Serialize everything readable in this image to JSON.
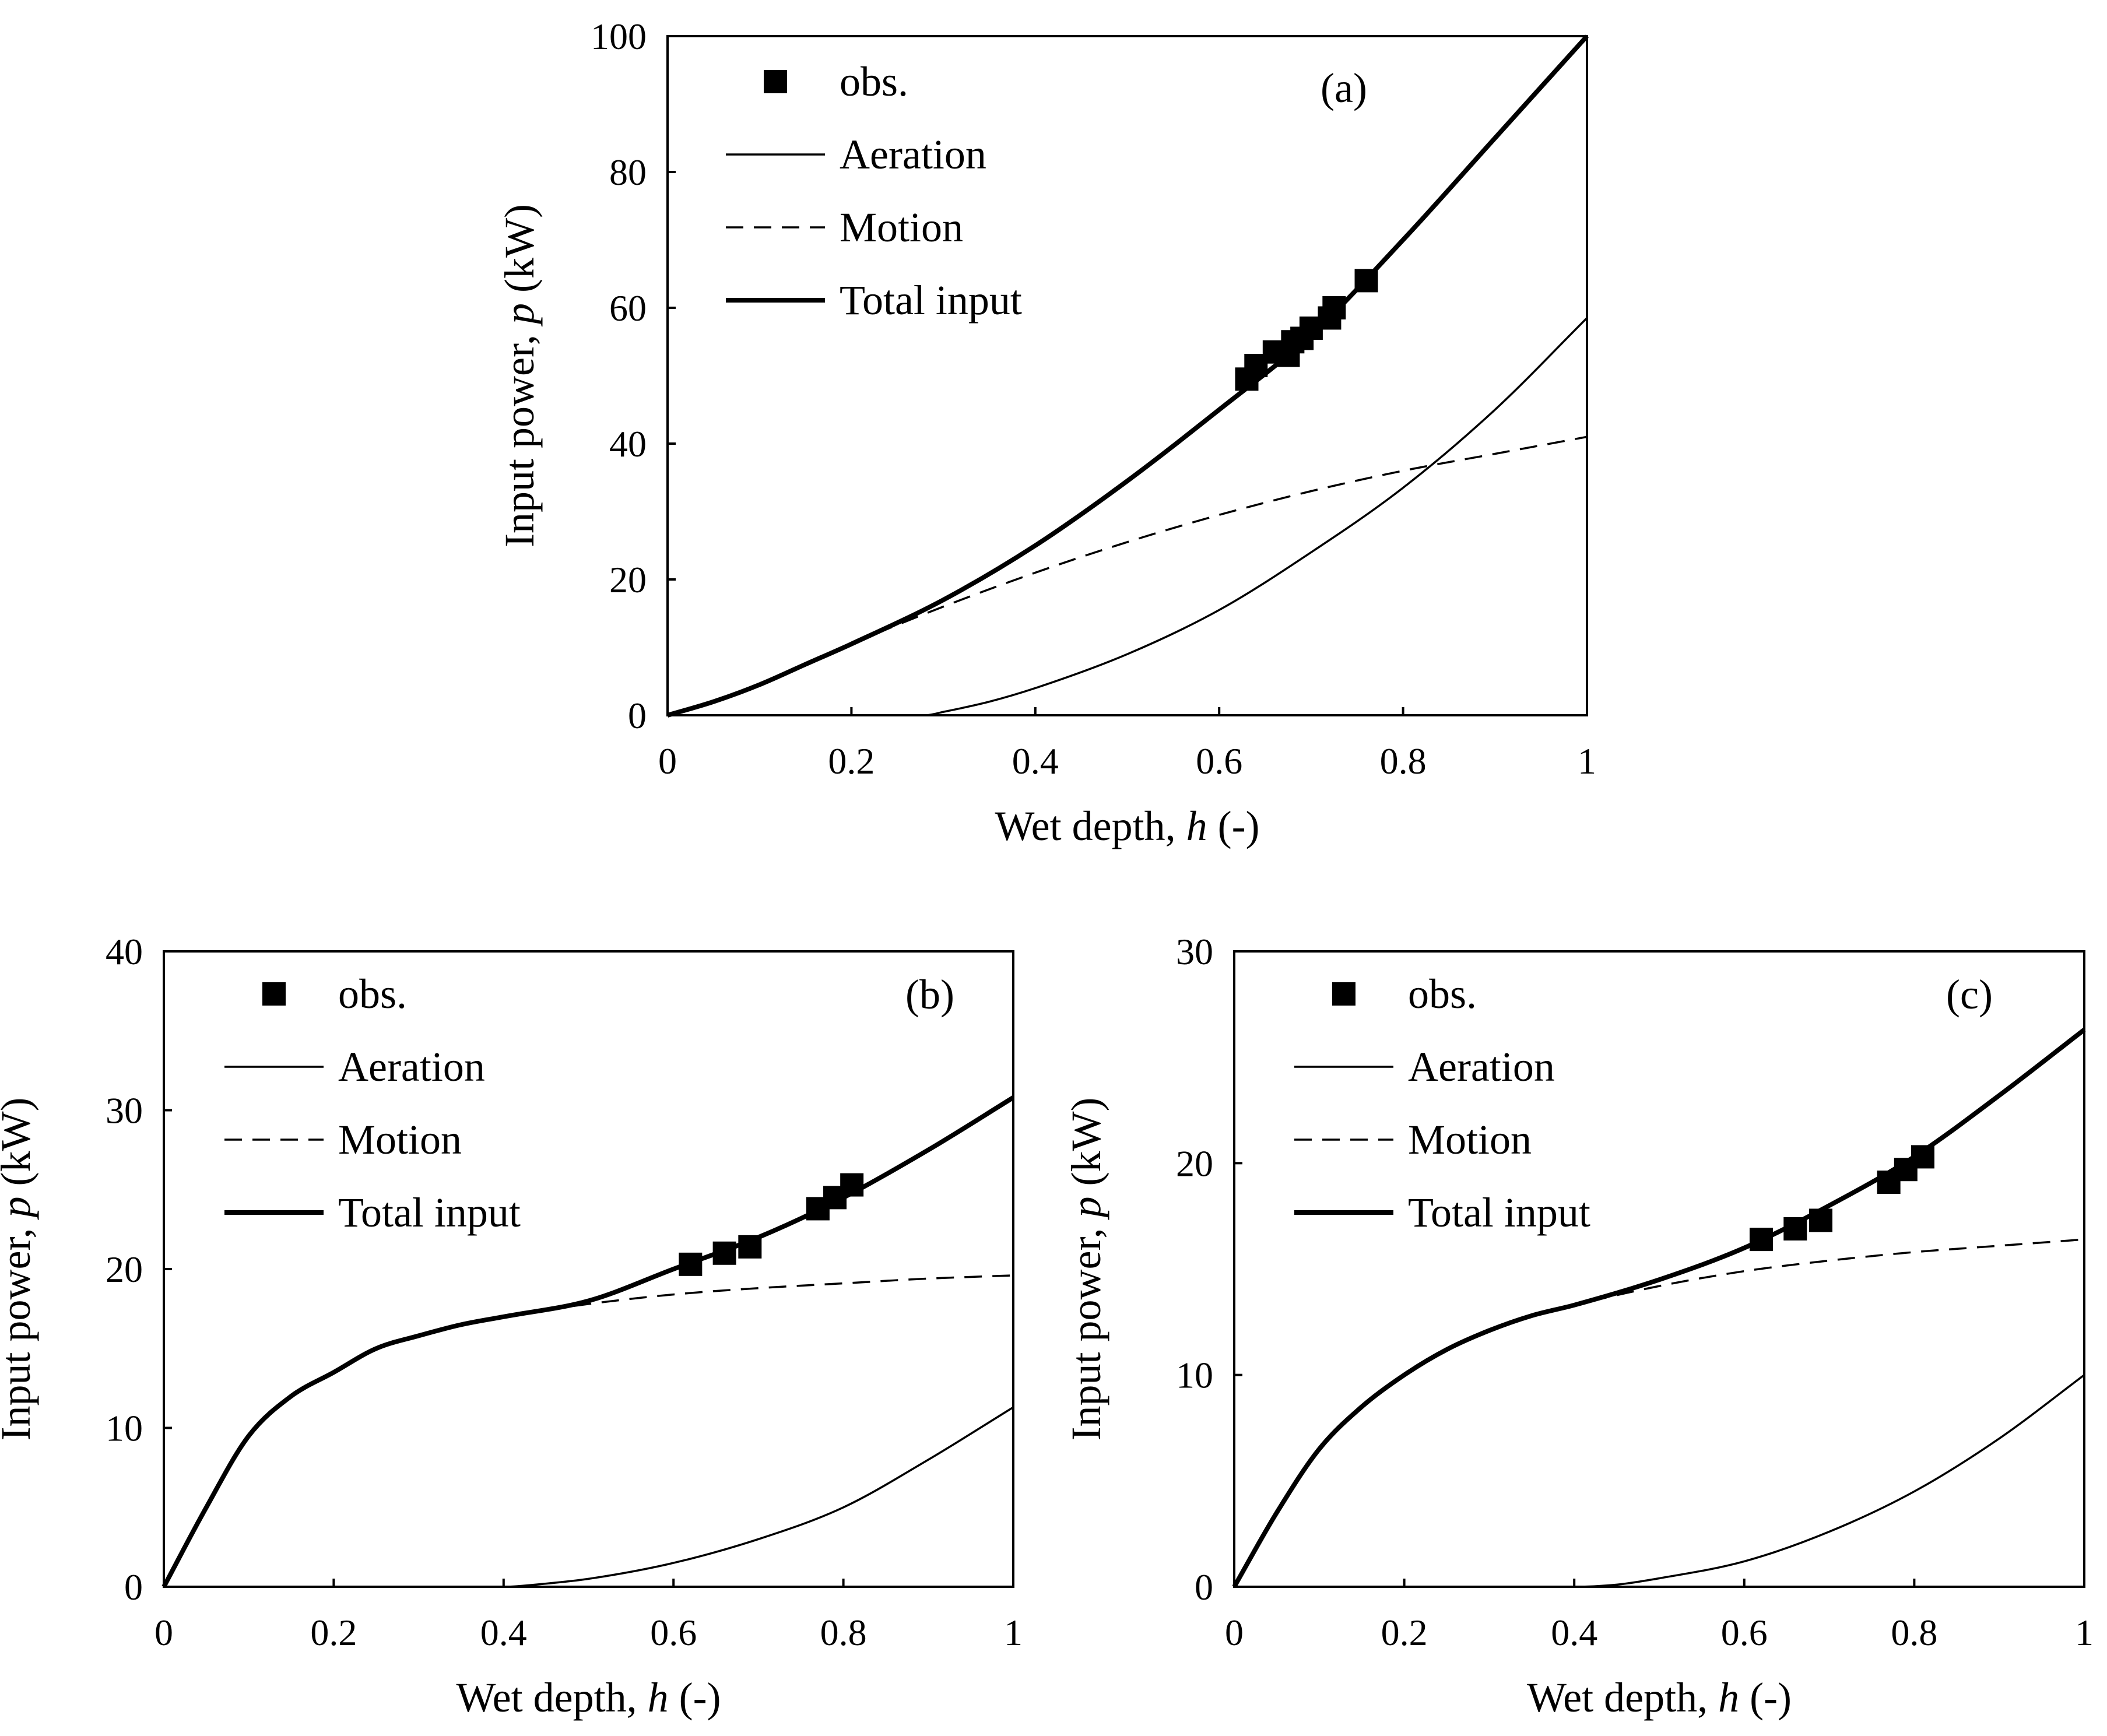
{
  "chart_data": [
    {
      "type": "line",
      "panel": "(a)",
      "xlabel_prefix": "Wet depth, ",
      "xlabel_var": "h",
      "xlabel_suffix": " (-)",
      "ylabel_prefix": "Input power, ",
      "ylabel_var": "p",
      "ylabel_suffix": "  (kW)",
      "xlim": [
        0,
        1
      ],
      "ylim": [
        0,
        100
      ],
      "xticks": [
        0,
        0.2,
        0.4,
        0.6,
        0.8,
        1
      ],
      "xtick_labels": [
        "0",
        "0.2",
        "0.4",
        "0.6",
        "0.8",
        "1"
      ],
      "yticks": [
        0,
        20,
        40,
        60,
        80,
        100
      ],
      "ytick_labels": [
        "0",
        "20",
        "40",
        "60",
        "80",
        "100"
      ],
      "legend": [
        "obs.",
        "Aeration",
        "Motion",
        "Total input"
      ],
      "legend_position": "top-left",
      "series": [
        {
          "name": "Aeration",
          "style": "thin-solid",
          "x": [
            0,
            0.1,
            0.2,
            0.25,
            0.28,
            0.3,
            0.35,
            0.4,
            0.5,
            0.6,
            0.7,
            0.8,
            0.9,
            1.0
          ],
          "y": [
            0,
            0,
            0,
            0,
            0,
            0.5,
            2,
            4,
            9,
            15.5,
            24,
            33.5,
            45,
            58.5
          ]
        },
        {
          "name": "Motion",
          "style": "dashed",
          "x": [
            0,
            0.05,
            0.1,
            0.15,
            0.2,
            0.3,
            0.4,
            0.5,
            0.6,
            0.7,
            0.8,
            0.9,
            1.0
          ],
          "y": [
            0,
            2,
            4.5,
            7.5,
            10.5,
            16,
            21,
            25.5,
            29.5,
            33,
            36,
            38.5,
            41
          ]
        },
        {
          "name": "Total input",
          "style": "thick-solid",
          "x": [
            0,
            0.05,
            0.1,
            0.15,
            0.2,
            0.3,
            0.4,
            0.5,
            0.6,
            0.7,
            0.8,
            0.9,
            1.0
          ],
          "y": [
            0,
            2,
            4.5,
            7.5,
            10.5,
            17,
            25,
            34.5,
            45,
            56,
            70,
            85,
            100
          ]
        },
        {
          "name": "obs.",
          "style": "square-markers",
          "x": [
            0.63,
            0.64,
            0.66,
            0.675,
            0.68,
            0.69,
            0.7,
            0.72,
            0.725,
            0.76
          ],
          "y": [
            49.5,
            51.5,
            53.5,
            53,
            55,
            55.5,
            57,
            58.5,
            60,
            64
          ]
        }
      ]
    },
    {
      "type": "line",
      "panel": "(b)",
      "xlabel_prefix": "Wet depth, ",
      "xlabel_var": "h",
      "xlabel_suffix": " (-)",
      "ylabel_prefix": "Input power, ",
      "ylabel_var": "p",
      "ylabel_suffix": "  (kW)",
      "xlim": [
        0,
        1
      ],
      "ylim": [
        0,
        40
      ],
      "xticks": [
        0,
        0.2,
        0.4,
        0.6,
        0.8,
        1
      ],
      "xtick_labels": [
        "0",
        "0.2",
        "0.4",
        "0.6",
        "0.8",
        "1"
      ],
      "yticks": [
        0,
        10,
        20,
        30,
        40
      ],
      "ytick_labels": [
        "0",
        "10",
        "20",
        "30",
        "40"
      ],
      "legend": [
        "obs.",
        "Aeration",
        "Motion",
        "Total input"
      ],
      "legend_position": "top-left",
      "series": [
        {
          "name": "Aeration",
          "style": "thin-solid",
          "x": [
            0,
            0.2,
            0.3,
            0.4,
            0.45,
            0.5,
            0.6,
            0.7,
            0.8,
            0.9,
            1.0
          ],
          "y": [
            0,
            0,
            0,
            0,
            0.2,
            0.5,
            1.5,
            3,
            5,
            8,
            11.3
          ]
        },
        {
          "name": "Motion",
          "style": "dashed",
          "x": [
            0,
            0.05,
            0.1,
            0.15,
            0.2,
            0.25,
            0.3,
            0.35,
            0.4,
            0.5,
            0.6,
            0.7,
            0.8,
            0.9,
            1.0
          ],
          "y": [
            0,
            5,
            9.5,
            12,
            13.5,
            15,
            15.8,
            16.5,
            17,
            17.8,
            18.4,
            18.8,
            19.1,
            19.4,
            19.6
          ]
        },
        {
          "name": "Total input",
          "style": "thick-solid",
          "x": [
            0,
            0.05,
            0.1,
            0.15,
            0.2,
            0.25,
            0.3,
            0.35,
            0.4,
            0.5,
            0.6,
            0.7,
            0.8,
            0.9,
            1.0
          ],
          "y": [
            0,
            5,
            9.5,
            12,
            13.5,
            15,
            15.8,
            16.5,
            17,
            18,
            20,
            22,
            24.5,
            27.5,
            30.8
          ]
        },
        {
          "name": "obs.",
          "style": "square-markers",
          "x": [
            0.62,
            0.66,
            0.69,
            0.77,
            0.79,
            0.81
          ],
          "y": [
            20.3,
            21,
            21.4,
            23.8,
            24.5,
            25.3
          ]
        }
      ]
    },
    {
      "type": "line",
      "panel": "(c)",
      "xlabel_prefix": "Wet depth, ",
      "xlabel_var": "h",
      "xlabel_suffix": " (-)",
      "ylabel_prefix": "Input power, ",
      "ylabel_var": "p",
      "ylabel_suffix": "  (kW)",
      "xlim": [
        0,
        1
      ],
      "ylim": [
        0,
        30
      ],
      "xticks": [
        0,
        0.2,
        0.4,
        0.6,
        0.8,
        1
      ],
      "xtick_labels": [
        "0",
        "0.2",
        "0.4",
        "0.6",
        "0.8",
        "1"
      ],
      "yticks": [
        0,
        10,
        20,
        30
      ],
      "ytick_labels": [
        "0",
        "10",
        "20",
        "30"
      ],
      "legend": [
        "obs.",
        "Aeration",
        "Motion",
        "Total input"
      ],
      "legend_position": "top-left",
      "series": [
        {
          "name": "Aeration",
          "style": "thin-solid",
          "x": [
            0,
            0.2,
            0.3,
            0.4,
            0.45,
            0.5,
            0.6,
            0.7,
            0.8,
            0.9,
            1.0
          ],
          "y": [
            0,
            0,
            0,
            0,
            0.1,
            0.4,
            1.2,
            2.6,
            4.5,
            7,
            10
          ]
        },
        {
          "name": "Motion",
          "style": "dashed",
          "x": [
            0,
            0.05,
            0.1,
            0.15,
            0.2,
            0.25,
            0.3,
            0.35,
            0.4,
            0.5,
            0.6,
            0.7,
            0.8,
            0.9,
            1.0
          ],
          "y": [
            0,
            3.5,
            6.5,
            8.5,
            10,
            11.2,
            12.1,
            12.8,
            13.3,
            14.2,
            14.9,
            15.4,
            15.8,
            16.1,
            16.4
          ]
        },
        {
          "name": "Total input",
          "style": "thick-solid",
          "x": [
            0,
            0.05,
            0.1,
            0.15,
            0.2,
            0.25,
            0.3,
            0.35,
            0.4,
            0.5,
            0.6,
            0.7,
            0.8,
            0.9,
            1.0
          ],
          "y": [
            0,
            3.5,
            6.5,
            8.5,
            10,
            11.2,
            12.1,
            12.8,
            13.3,
            14.5,
            16,
            18,
            20.3,
            23.2,
            26.3
          ]
        },
        {
          "name": "obs.",
          "style": "square-markers",
          "x": [
            0.62,
            0.66,
            0.69,
            0.77,
            0.79,
            0.81
          ],
          "y": [
            16.4,
            16.9,
            17.3,
            19.1,
            19.7,
            20.3
          ]
        }
      ]
    }
  ]
}
